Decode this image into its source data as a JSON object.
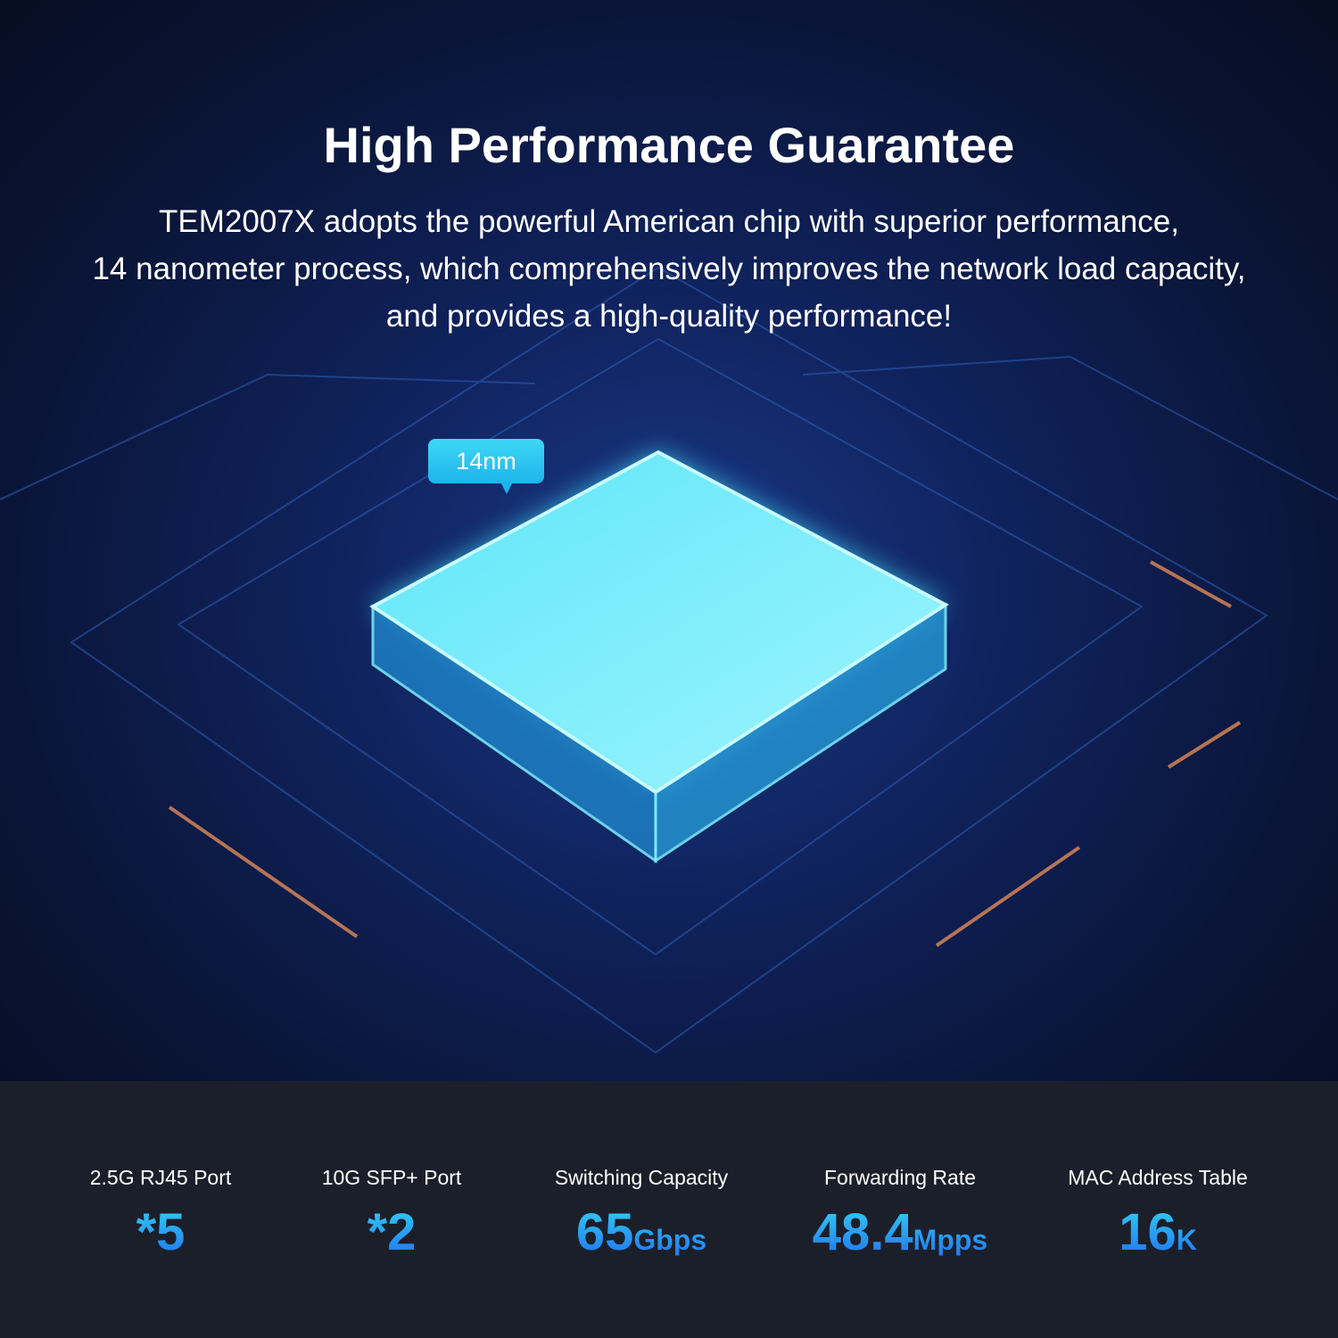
{
  "header": {
    "title": "High Performance Guarantee",
    "description": [
      "TEM2007X adopts the powerful American chip with superior performance,",
      "14 nanometer process, which comprehensively improves the network load capacity,",
      "and provides a high-quality performance!"
    ]
  },
  "chip": {
    "badge": "14nm"
  },
  "stats": [
    {
      "label": "2.5G RJ45 Port",
      "value": "*5",
      "unit": ""
    },
    {
      "label": "10G SFP+ Port",
      "value": "*2",
      "unit": ""
    },
    {
      "label": "Switching Capacity",
      "value": "65",
      "unit": "Gbps"
    },
    {
      "label": "Forwarding Rate",
      "value": "48.4",
      "unit": "Mpps"
    },
    {
      "label": "MAC Address Table",
      "value": "16",
      "unit": "K"
    }
  ],
  "colors": {
    "accent_top": "#34d3f5",
    "accent_bottom": "#1f6fee",
    "panel": "#1b1f2a"
  }
}
